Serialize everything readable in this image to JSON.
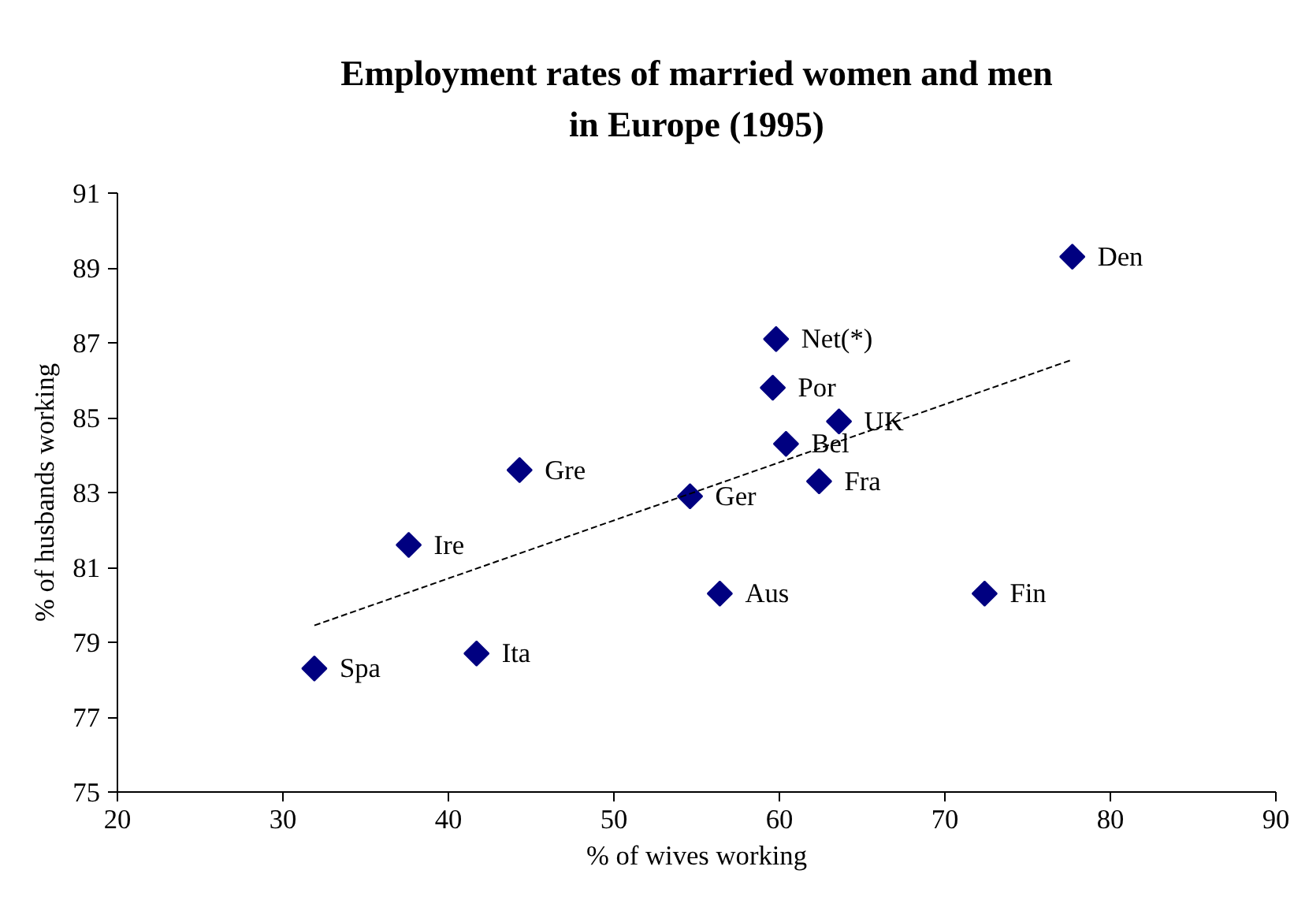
{
  "chart_data": {
    "type": "scatter",
    "title": "Employment rates of married women and men in Europe (1995)",
    "xlabel": "% of wives working",
    "ylabel": "% of husbands working",
    "xlim": [
      20,
      90
    ],
    "ylim": [
      75,
      91
    ],
    "xticks": [
      20,
      30,
      40,
      50,
      60,
      70,
      80,
      90
    ],
    "yticks": [
      75,
      77,
      79,
      81,
      83,
      85,
      87,
      89,
      91
    ],
    "grid": false,
    "marker": "diamond",
    "series": [
      {
        "color": "#000080",
        "x": [
          31.9,
          41.7,
          37.6,
          44.3,
          54.6,
          56.4,
          59.8,
          59.6,
          60.4,
          63.6,
          62.4,
          72.4,
          77.7
        ],
        "values": [
          78.3,
          78.7,
          81.6,
          83.6,
          82.9,
          80.3,
          87.1,
          85.8,
          84.3,
          84.9,
          83.3,
          80.3,
          89.3
        ]
      },
      {
        "type": "line",
        "color": "#000000",
        "line_style": "dashed",
        "marker": "none",
        "x": [
          31.9,
          77.7
        ],
        "values": [
          79.45,
          86.55
        ]
      }
    ],
    "annotations": [
      {
        "text": "Spa",
        "x": 31.9,
        "y": 78.3
      },
      {
        "text": "Ita",
        "x": 41.7,
        "y": 78.7
      },
      {
        "text": "Ire",
        "x": 37.6,
        "y": 81.6
      },
      {
        "text": "Gre",
        "x": 44.3,
        "y": 83.6
      },
      {
        "text": "Ger",
        "x": 54.6,
        "y": 82.9
      },
      {
        "text": "Aus",
        "x": 56.4,
        "y": 80.3
      },
      {
        "text": "Net(*)",
        "x": 59.8,
        "y": 87.1
      },
      {
        "text": "Por",
        "x": 59.6,
        "y": 85.8
      },
      {
        "text": "Bel",
        "x": 60.4,
        "y": 84.3
      },
      {
        "text": "UK",
        "x": 63.6,
        "y": 84.9
      },
      {
        "text": "Fra",
        "x": 62.4,
        "y": 83.3
      },
      {
        "text": "Fin",
        "x": 72.4,
        "y": 80.3
      },
      {
        "text": "Den",
        "x": 77.7,
        "y": 89.3
      }
    ]
  }
}
